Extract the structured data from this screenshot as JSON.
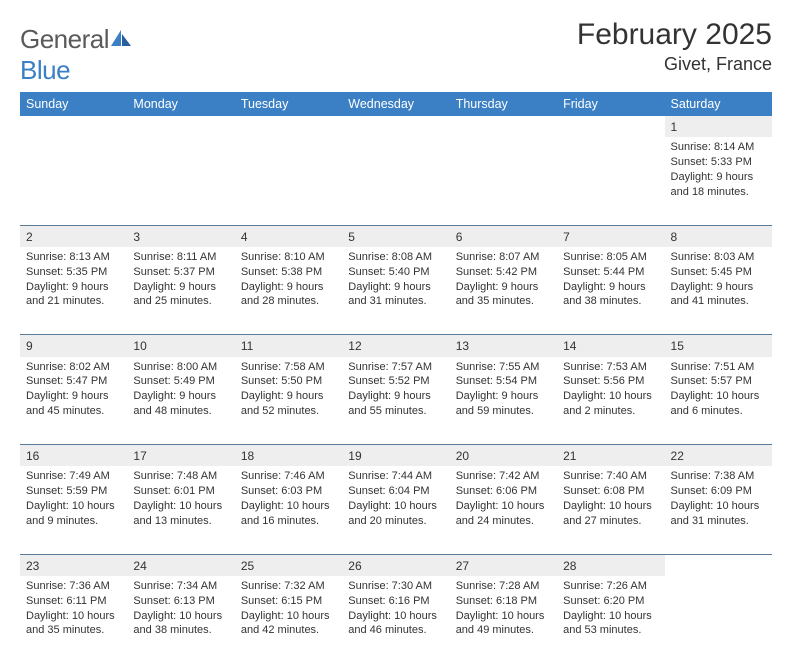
{
  "logo": {
    "word1": "General",
    "word2": "Blue"
  },
  "title": "February 2025",
  "location": "Givet, France",
  "colors": {
    "header_bg": "#3b7fc4",
    "header_fg": "#ffffff",
    "daynum_bg": "#eeeeee",
    "row_divider": "#5a7a9a",
    "body_text": "#333333",
    "page_bg": "#ffffff",
    "logo_gray": "#5a5a5a",
    "logo_blue": "#3b7fc4"
  },
  "typography": {
    "title_fontsize": 30,
    "location_fontsize": 18,
    "dayheader_fontsize": 12.5,
    "cell_fontsize": 11,
    "daynum_fontsize": 12
  },
  "columns": [
    "Sunday",
    "Monday",
    "Tuesday",
    "Wednesday",
    "Thursday",
    "Friday",
    "Saturday"
  ],
  "weeks": [
    [
      null,
      null,
      null,
      null,
      null,
      null,
      {
        "n": "1",
        "sunrise": "8:14 AM",
        "sunset": "5:33 PM",
        "daylight": "9 hours and 18 minutes."
      }
    ],
    [
      {
        "n": "2",
        "sunrise": "8:13 AM",
        "sunset": "5:35 PM",
        "daylight": "9 hours and 21 minutes."
      },
      {
        "n": "3",
        "sunrise": "8:11 AM",
        "sunset": "5:37 PM",
        "daylight": "9 hours and 25 minutes."
      },
      {
        "n": "4",
        "sunrise": "8:10 AM",
        "sunset": "5:38 PM",
        "daylight": "9 hours and 28 minutes."
      },
      {
        "n": "5",
        "sunrise": "8:08 AM",
        "sunset": "5:40 PM",
        "daylight": "9 hours and 31 minutes."
      },
      {
        "n": "6",
        "sunrise": "8:07 AM",
        "sunset": "5:42 PM",
        "daylight": "9 hours and 35 minutes."
      },
      {
        "n": "7",
        "sunrise": "8:05 AM",
        "sunset": "5:44 PM",
        "daylight": "9 hours and 38 minutes."
      },
      {
        "n": "8",
        "sunrise": "8:03 AM",
        "sunset": "5:45 PM",
        "daylight": "9 hours and 41 minutes."
      }
    ],
    [
      {
        "n": "9",
        "sunrise": "8:02 AM",
        "sunset": "5:47 PM",
        "daylight": "9 hours and 45 minutes."
      },
      {
        "n": "10",
        "sunrise": "8:00 AM",
        "sunset": "5:49 PM",
        "daylight": "9 hours and 48 minutes."
      },
      {
        "n": "11",
        "sunrise": "7:58 AM",
        "sunset": "5:50 PM",
        "daylight": "9 hours and 52 minutes."
      },
      {
        "n": "12",
        "sunrise": "7:57 AM",
        "sunset": "5:52 PM",
        "daylight": "9 hours and 55 minutes."
      },
      {
        "n": "13",
        "sunrise": "7:55 AM",
        "sunset": "5:54 PM",
        "daylight": "9 hours and 59 minutes."
      },
      {
        "n": "14",
        "sunrise": "7:53 AM",
        "sunset": "5:56 PM",
        "daylight": "10 hours and 2 minutes."
      },
      {
        "n": "15",
        "sunrise": "7:51 AM",
        "sunset": "5:57 PM",
        "daylight": "10 hours and 6 minutes."
      }
    ],
    [
      {
        "n": "16",
        "sunrise": "7:49 AM",
        "sunset": "5:59 PM",
        "daylight": "10 hours and 9 minutes."
      },
      {
        "n": "17",
        "sunrise": "7:48 AM",
        "sunset": "6:01 PM",
        "daylight": "10 hours and 13 minutes."
      },
      {
        "n": "18",
        "sunrise": "7:46 AM",
        "sunset": "6:03 PM",
        "daylight": "10 hours and 16 minutes."
      },
      {
        "n": "19",
        "sunrise": "7:44 AM",
        "sunset": "6:04 PM",
        "daylight": "10 hours and 20 minutes."
      },
      {
        "n": "20",
        "sunrise": "7:42 AM",
        "sunset": "6:06 PM",
        "daylight": "10 hours and 24 minutes."
      },
      {
        "n": "21",
        "sunrise": "7:40 AM",
        "sunset": "6:08 PM",
        "daylight": "10 hours and 27 minutes."
      },
      {
        "n": "22",
        "sunrise": "7:38 AM",
        "sunset": "6:09 PM",
        "daylight": "10 hours and 31 minutes."
      }
    ],
    [
      {
        "n": "23",
        "sunrise": "7:36 AM",
        "sunset": "6:11 PM",
        "daylight": "10 hours and 35 minutes."
      },
      {
        "n": "24",
        "sunrise": "7:34 AM",
        "sunset": "6:13 PM",
        "daylight": "10 hours and 38 minutes."
      },
      {
        "n": "25",
        "sunrise": "7:32 AM",
        "sunset": "6:15 PM",
        "daylight": "10 hours and 42 minutes."
      },
      {
        "n": "26",
        "sunrise": "7:30 AM",
        "sunset": "6:16 PM",
        "daylight": "10 hours and 46 minutes."
      },
      {
        "n": "27",
        "sunrise": "7:28 AM",
        "sunset": "6:18 PM",
        "daylight": "10 hours and 49 minutes."
      },
      {
        "n": "28",
        "sunrise": "7:26 AM",
        "sunset": "6:20 PM",
        "daylight": "10 hours and 53 minutes."
      },
      null
    ]
  ],
  "labels": {
    "sunrise": "Sunrise:",
    "sunset": "Sunset:",
    "daylight": "Daylight:"
  }
}
